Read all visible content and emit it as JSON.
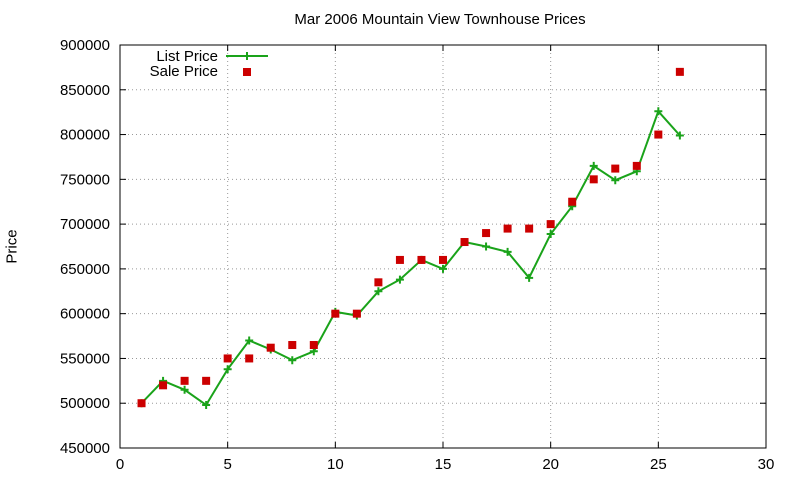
{
  "chart_data": {
    "type": "line",
    "title": "Mar 2006 Mountain View Townhouse Prices",
    "xlabel": "",
    "ylabel": "Price",
    "xlim": [
      0,
      30
    ],
    "ylim": [
      450000,
      900000
    ],
    "x_ticks": [
      0,
      5,
      10,
      15,
      20,
      25,
      30
    ],
    "y_ticks": [
      450000,
      500000,
      550000,
      600000,
      650000,
      700000,
      750000,
      800000,
      850000,
      900000
    ],
    "grid": true,
    "legend_position": "top-left",
    "series": [
      {
        "name": "List Price",
        "style": "line+cross",
        "color": "#1aa31a",
        "x": [
          1,
          2,
          3,
          4,
          5,
          6,
          7,
          8,
          9,
          10,
          11,
          12,
          13,
          14,
          15,
          16,
          17,
          18,
          19,
          20,
          21,
          22,
          23,
          24,
          25,
          26
        ],
        "values": [
          500000,
          525000,
          515000,
          498000,
          538000,
          570000,
          560000,
          548000,
          558000,
          602000,
          598000,
          625000,
          638000,
          660000,
          650000,
          680000,
          675000,
          669000,
          640000,
          689000,
          720000,
          765000,
          749000,
          759000,
          826000,
          799000
        ]
      },
      {
        "name": "Sale Price",
        "style": "square",
        "color": "#cc0000",
        "x": [
          1,
          2,
          3,
          4,
          5,
          6,
          7,
          8,
          9,
          10,
          11,
          12,
          13,
          14,
          15,
          16,
          17,
          18,
          19,
          20,
          21,
          22,
          23,
          24,
          25,
          26
        ],
        "values": [
          500000,
          520000,
          525000,
          525000,
          550000,
          550000,
          562000,
          565000,
          565000,
          600000,
          600000,
          635000,
          660000,
          660000,
          660000,
          680000,
          690000,
          695000,
          695000,
          700000,
          725000,
          750000,
          762000,
          765000,
          800000,
          870000
        ]
      }
    ]
  }
}
